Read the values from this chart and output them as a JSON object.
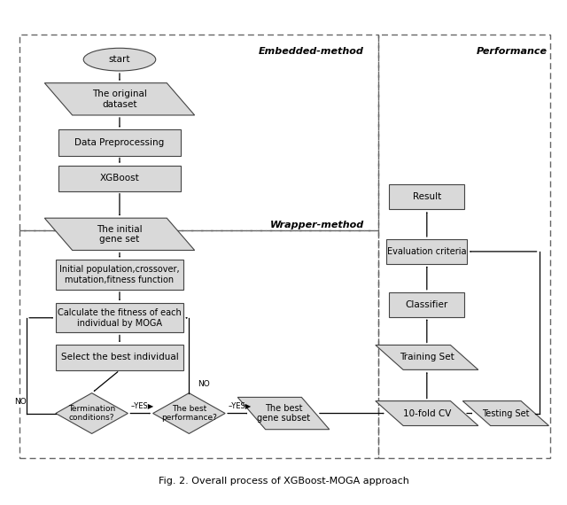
{
  "title": "Fig. 2. Overall process of XGBoost-MOGA approach",
  "background_color": "#ffffff",
  "box_fill": "#d9d9d9",
  "box_edge": "#444444",
  "arrow_color": "#000000",
  "section_labels": {
    "embedded": "Embedded-method",
    "wrapper": "Wrapper-method",
    "performance": "Performance"
  },
  "fig_width": 6.4,
  "fig_height": 5.7,
  "dpi": 100
}
